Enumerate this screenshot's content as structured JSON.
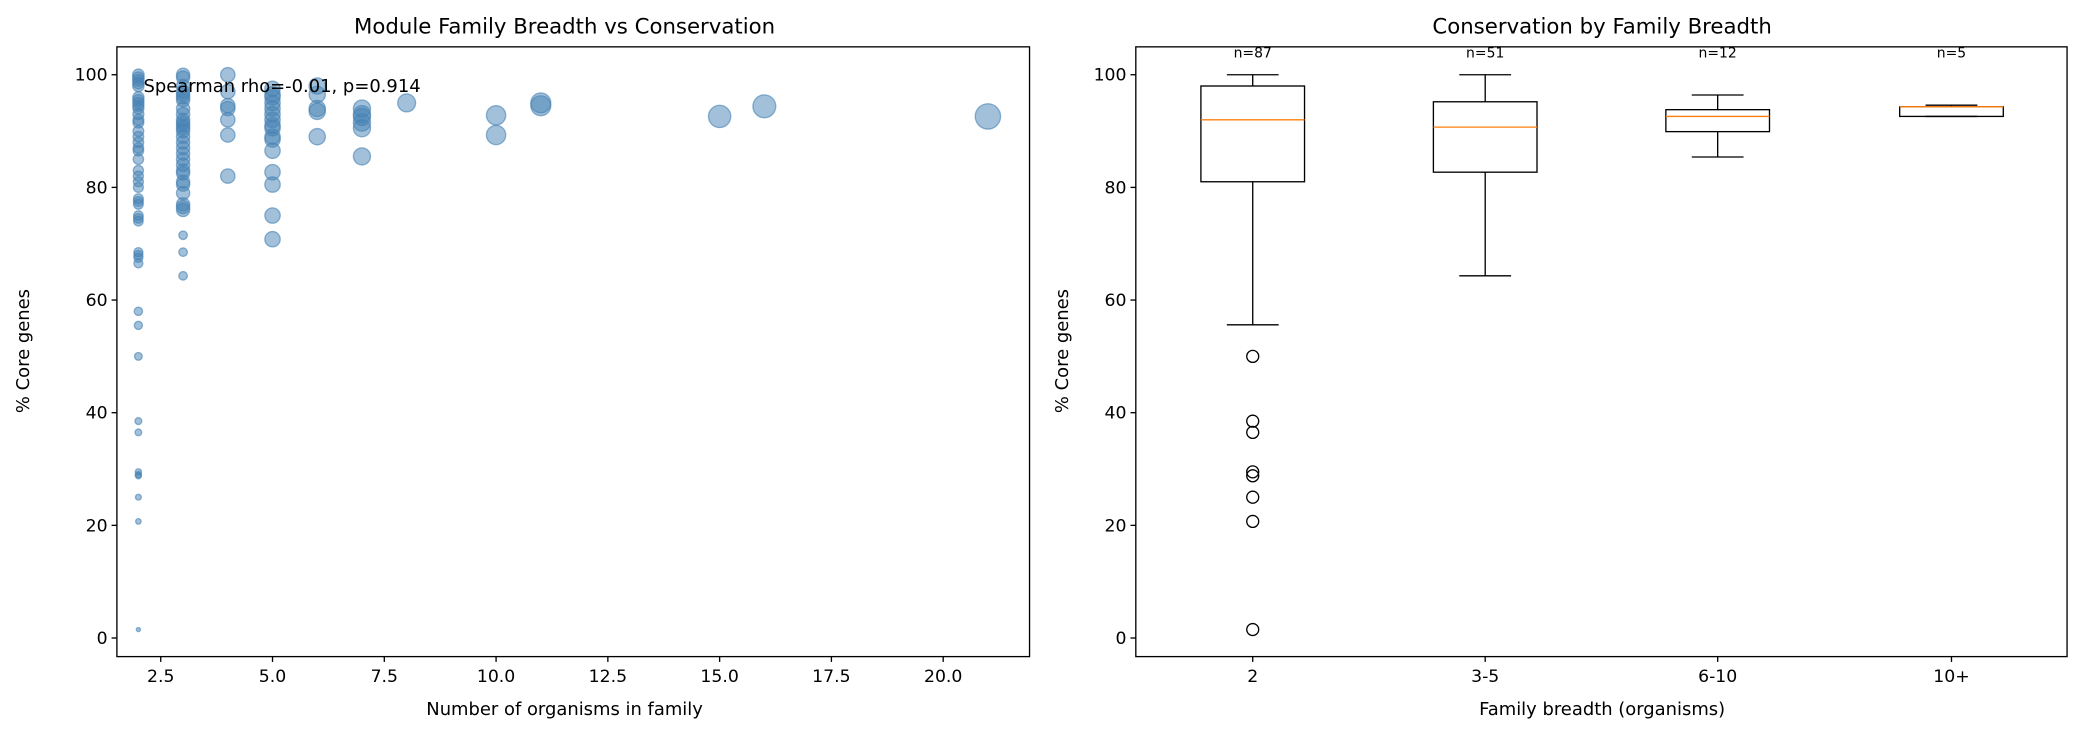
{
  "chart_data": [
    {
      "type": "scatter",
      "title": "Module Family Breadth vs Conservation",
      "xlabel": "Number of organisms in family",
      "ylabel": "% Core genes",
      "xlim": [
        1.2,
        22
      ],
      "ylim": [
        -3.5,
        105
      ],
      "xticks": [
        "2.5",
        "5.0",
        "7.5",
        "10.0",
        "12.5",
        "15.0",
        "17.5",
        "20.0"
      ],
      "yticks": [
        "0",
        "20",
        "40",
        "60",
        "80",
        "100"
      ],
      "annotation": "Spearman rho=-0.01, p=0.914",
      "color": "#4682b4",
      "grid": false,
      "points": [
        [
          2,
          100
        ],
        [
          2,
          99.5
        ],
        [
          2,
          99
        ],
        [
          2,
          98.5
        ],
        [
          2,
          98
        ],
        [
          2,
          96
        ],
        [
          2,
          95.5
        ],
        [
          2,
          95
        ],
        [
          2,
          94.5
        ],
        [
          2,
          94
        ],
        [
          2,
          93
        ],
        [
          2,
          92
        ],
        [
          2,
          91.5
        ],
        [
          2,
          90
        ],
        [
          2,
          89
        ],
        [
          2,
          88
        ],
        [
          2,
          87
        ],
        [
          2,
          86.5
        ],
        [
          2,
          85
        ],
        [
          2,
          83
        ],
        [
          2,
          82
        ],
        [
          2,
          81
        ],
        [
          2,
          80
        ],
        [
          2,
          78
        ],
        [
          2,
          77.5
        ],
        [
          2,
          77
        ],
        [
          2,
          75
        ],
        [
          2,
          74.5
        ],
        [
          2,
          74
        ],
        [
          2,
          68.5
        ],
        [
          2,
          68
        ],
        [
          2,
          67.5
        ],
        [
          2,
          66.5
        ],
        [
          2,
          58
        ],
        [
          2,
          55.5
        ],
        [
          2,
          50
        ],
        [
          2,
          38.5
        ],
        [
          2,
          36.5
        ],
        [
          2,
          29.5
        ],
        [
          2,
          29
        ],
        [
          2,
          28.8
        ],
        [
          2,
          25
        ],
        [
          2,
          20.7
        ],
        [
          2,
          1.5
        ],
        [
          3,
          100
        ],
        [
          3,
          99.5
        ],
        [
          3,
          98
        ],
        [
          3,
          97
        ],
        [
          3,
          96.5
        ],
        [
          3,
          96
        ],
        [
          3,
          95.5
        ],
        [
          3,
          94
        ],
        [
          3,
          93
        ],
        [
          3,
          92
        ],
        [
          3,
          91.5
        ],
        [
          3,
          91
        ],
        [
          3,
          90.5
        ],
        [
          3,
          90
        ],
        [
          3,
          89
        ],
        [
          3,
          88
        ],
        [
          3,
          87
        ],
        [
          3,
          86
        ],
        [
          3,
          85
        ],
        [
          3,
          84
        ],
        [
          3,
          83
        ],
        [
          3,
          82.5
        ],
        [
          3,
          81
        ],
        [
          3,
          80.5
        ],
        [
          3,
          79
        ],
        [
          3,
          77
        ],
        [
          3,
          76.5
        ],
        [
          3,
          76
        ],
        [
          3,
          71.5
        ],
        [
          3,
          68.5
        ],
        [
          3,
          64.3
        ],
        [
          4,
          100
        ],
        [
          4,
          97
        ],
        [
          4,
          94.5
        ],
        [
          4,
          94
        ],
        [
          4,
          92
        ],
        [
          4,
          89.3
        ],
        [
          4,
          82
        ],
        [
          5,
          97.5
        ],
        [
          5,
          96.5
        ],
        [
          5,
          96
        ],
        [
          5,
          95
        ],
        [
          5,
          94
        ],
        [
          5,
          93
        ],
        [
          5,
          92
        ],
        [
          5,
          91
        ],
        [
          5,
          90.5
        ],
        [
          5,
          89
        ],
        [
          5,
          88.5
        ],
        [
          5,
          86.5
        ],
        [
          5,
          82.7
        ],
        [
          5,
          80.5
        ],
        [
          5,
          75
        ],
        [
          5,
          70.8
        ],
        [
          6,
          98
        ],
        [
          6,
          96.5
        ],
        [
          6,
          94
        ],
        [
          6,
          93.5
        ],
        [
          6,
          89
        ],
        [
          7,
          94
        ],
        [
          7,
          93
        ],
        [
          7,
          92.5
        ],
        [
          7,
          91.5
        ],
        [
          7,
          90.5
        ],
        [
          7,
          85.5
        ],
        [
          8,
          95
        ],
        [
          10,
          92.8
        ],
        [
          10,
          89.3
        ],
        [
          11,
          95
        ],
        [
          11,
          94.5
        ],
        [
          15,
          92.6
        ],
        [
          16,
          94.4
        ],
        [
          21,
          92.6
        ]
      ]
    },
    {
      "type": "box",
      "title": "Conservation by Family Breadth",
      "xlabel": "Family breadth (organisms)",
      "ylabel": "% Core genes",
      "ylim": [
        -3.5,
        105
      ],
      "yticks": [
        "0",
        "20",
        "40",
        "60",
        "80",
        "100"
      ],
      "median_color": "#ff7f0e",
      "categories": [
        "2",
        "3-5",
        "6-10",
        "10+"
      ],
      "counts": [
        "n=87",
        "n=51",
        "n=12",
        "n=5"
      ],
      "boxes": [
        {
          "whislo": 55.6,
          "q1": 81,
          "med": 92,
          "q3": 98,
          "whishi": 100,
          "fliers": [
            50,
            38.5,
            36.5,
            29.5,
            28.8,
            25,
            20.7,
            1.5
          ]
        },
        {
          "whislo": 64.3,
          "q1": 82.7,
          "med": 90.7,
          "q3": 95.2,
          "whishi": 100,
          "fliers": []
        },
        {
          "whislo": 85.4,
          "q1": 89.9,
          "med": 92.6,
          "q3": 93.8,
          "whishi": 96.4,
          "fliers": []
        },
        {
          "whislo": 92.6,
          "q1": 92.6,
          "med": 94.3,
          "q3": 94.3,
          "whishi": 94.6,
          "fliers": []
        }
      ]
    }
  ]
}
